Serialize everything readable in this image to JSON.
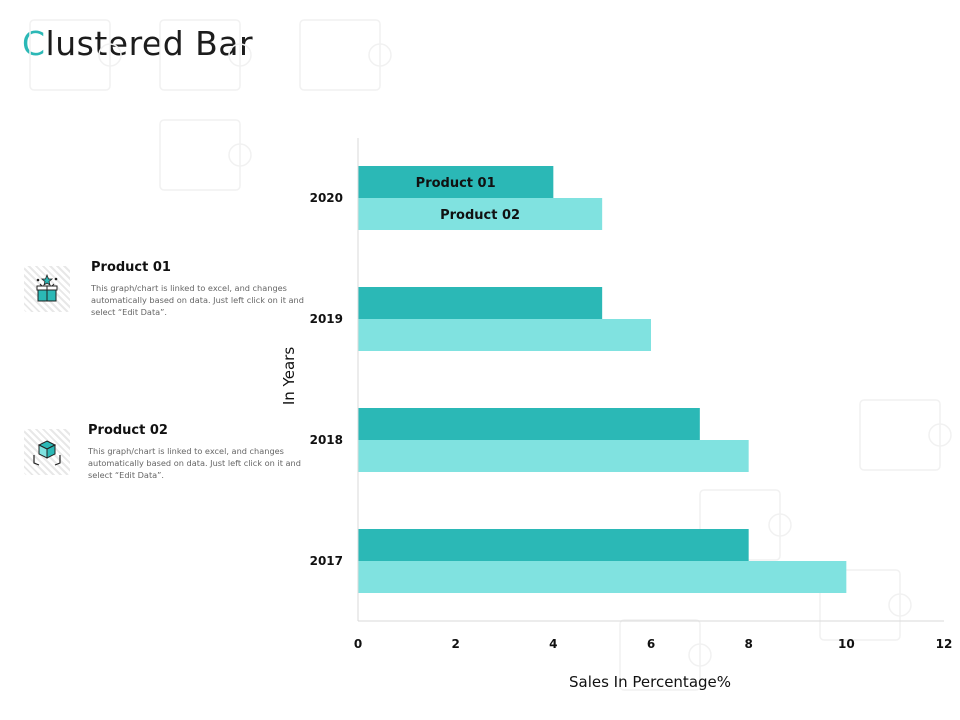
{
  "slide": {
    "title_first_letter": "C",
    "title_rest": "lustered Bar"
  },
  "info_blocks": [
    {
      "heading": "Product 01",
      "description": "This graph/chart is linked to excel, and changes automatically based on data. Just left click on it and select “Edit Data”.",
      "icon": "gift-box-icon"
    },
    {
      "heading": "Product 02",
      "description": "This graph/chart is linked to excel, and changes automatically based on data. Just left click on it and select “Edit Data”.",
      "icon": "box-in-hands-icon"
    }
  ],
  "colors": {
    "accent": "#2bb8b6",
    "series_1": "#2bb8b6",
    "series_2": "#80e2e0"
  },
  "chart_data": {
    "type": "bar",
    "orientation": "horizontal",
    "categories": [
      "2017",
      "2018",
      "2019",
      "2020"
    ],
    "series": [
      {
        "name": "Product 01",
        "values": [
          8,
          7,
          5,
          4
        ]
      },
      {
        "name": "Product 02",
        "values": [
          10,
          8,
          6,
          5
        ]
      }
    ],
    "xlabel": "Sales In Percentage%",
    "ylabel": "In Years",
    "xlim": [
      0,
      12
    ],
    "xticks": [
      "0",
      "2",
      "4",
      "6",
      "8",
      "10",
      "12"
    ],
    "grid": false,
    "bar_labels_on": "2020"
  }
}
